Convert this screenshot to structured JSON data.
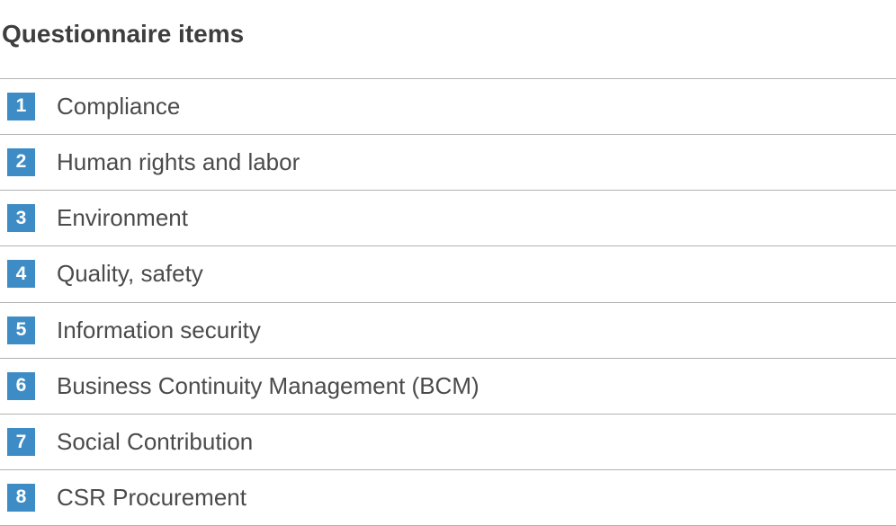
{
  "page": {
    "title": "Questionnaire items"
  },
  "list": {
    "items": [
      {
        "number": "1",
        "label": "Compliance"
      },
      {
        "number": "2",
        "label": "Human rights and labor"
      },
      {
        "number": "3",
        "label": "Environment"
      },
      {
        "number": "4",
        "label": "Quality, safety"
      },
      {
        "number": "5",
        "label": "Information security"
      },
      {
        "number": "6",
        "label": "Business Continuity Management (BCM)"
      },
      {
        "number": "7",
        "label": "Social Contribution"
      },
      {
        "number": "8",
        "label": "CSR Procurement"
      }
    ]
  },
  "colors": {
    "badge_blue": "#3e8cc6",
    "title_text": "#3e3e3e",
    "item_text": "#4b4b4b",
    "divider": "#b2b2b2",
    "background": "#ffffff",
    "badge_number_text": "#ffffff"
  }
}
